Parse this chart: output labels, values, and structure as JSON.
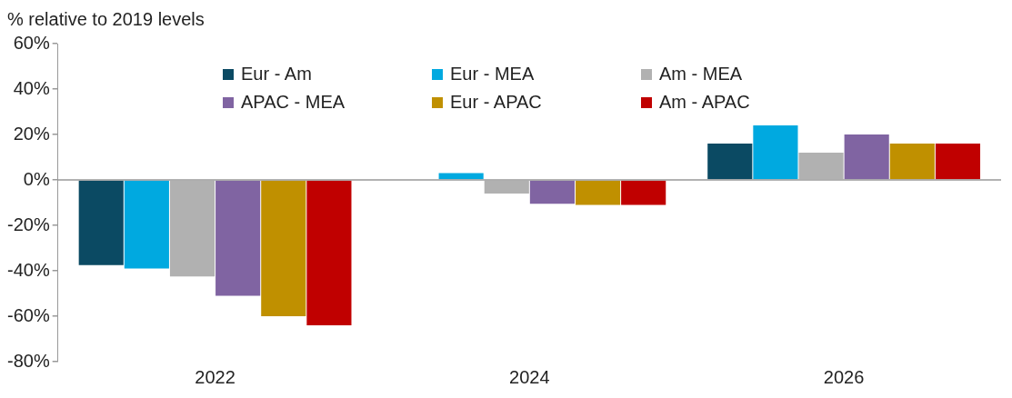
{
  "chart_data": {
    "type": "bar",
    "ylabel": "% relative to 2019 levels",
    "categories": [
      "2022",
      "2024",
      "2026"
    ],
    "series": [
      {
        "name": "Eur - Am",
        "color": "#0b4a63",
        "values": [
          -37.5,
          0,
          16
        ]
      },
      {
        "name": "Eur - MEA",
        "color": "#00a9e0",
        "values": [
          -39,
          3,
          24
        ]
      },
      {
        "name": "Am - MEA",
        "color": "#b1b1b1",
        "values": [
          -42.5,
          -6,
          12
        ]
      },
      {
        "name": "APAC - MEA",
        "color": "#8064a2",
        "values": [
          -51,
          -10.5,
          20
        ]
      },
      {
        "name": "Eur - APAC",
        "color": "#c09000",
        "values": [
          -60,
          -11,
          16
        ]
      },
      {
        "name": "Am - APAC",
        "color": "#c00000",
        "values": [
          -64,
          -11,
          16
        ]
      }
    ],
    "ylim": [
      -80,
      60
    ],
    "yticks": [
      {
        "value": -80,
        "label": "-80%"
      },
      {
        "value": -60,
        "label": "-60%"
      },
      {
        "value": -40,
        "label": "-40%"
      },
      {
        "value": -20,
        "label": "-20%"
      },
      {
        "value": 0,
        "label": "0%"
      },
      {
        "value": 20,
        "label": "20%"
      },
      {
        "value": 40,
        "label": "40%"
      },
      {
        "value": 60,
        "label": "60%"
      }
    ],
    "ref_lines": [
      {
        "axis": "y",
        "value": 0,
        "color": "#999999"
      }
    ],
    "legend": "top"
  }
}
